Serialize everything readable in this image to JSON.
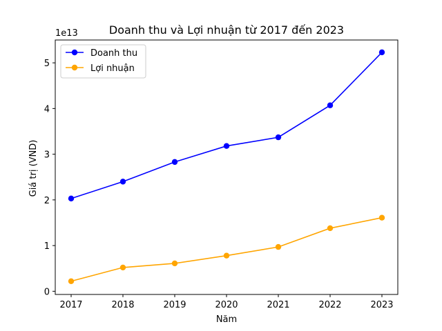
{
  "chart_data": {
    "type": "line",
    "title": "Doanh thu và Lợi nhuận từ 2017 đến 2023",
    "xlabel": "Năm",
    "ylabel": "Giá trị (VND)",
    "y_offset_label": "1e13",
    "categories": [
      "2017",
      "2018",
      "2019",
      "2020",
      "2021",
      "2022",
      "2023"
    ],
    "y_ticks": [
      0,
      1,
      2,
      3,
      4,
      5
    ],
    "ylim": [
      -0.07,
      5.5
    ],
    "grid": false,
    "legend_position": "top-left",
    "series": [
      {
        "name": "Doanh thu",
        "color": "#0000ff",
        "values": [
          2.03,
          2.4,
          2.83,
          3.18,
          3.37,
          4.07,
          5.23
        ]
      },
      {
        "name": "Lợi nhuận",
        "color": "#ffa500",
        "values": [
          0.22,
          0.52,
          0.61,
          0.78,
          0.97,
          1.38,
          1.61
        ]
      }
    ]
  }
}
